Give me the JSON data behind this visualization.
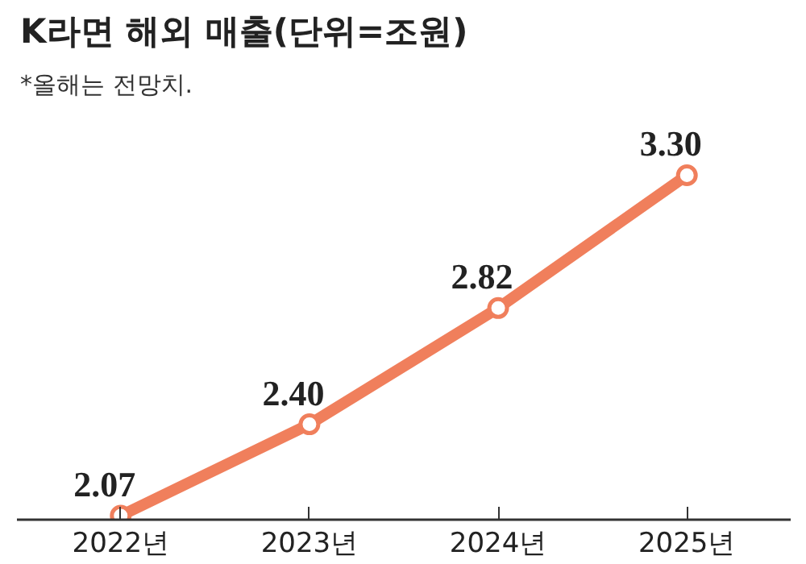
{
  "chart_data": {
    "type": "line",
    "title": "K라면 해외 매출(단위=조원)",
    "annotations": [
      "*올해는 전망치."
    ],
    "categories": [
      "2022년",
      "2023년",
      "2024년",
      "2025년"
    ],
    "series": [
      {
        "color": "#f07f5c",
        "values": [
          2.07,
          2.4,
          2.82,
          3.3
        ],
        "value_labels": [
          "2.07",
          "2.40",
          "2.82",
          "3.30"
        ]
      }
    ],
    "marker": "circle",
    "grid": false
  }
}
